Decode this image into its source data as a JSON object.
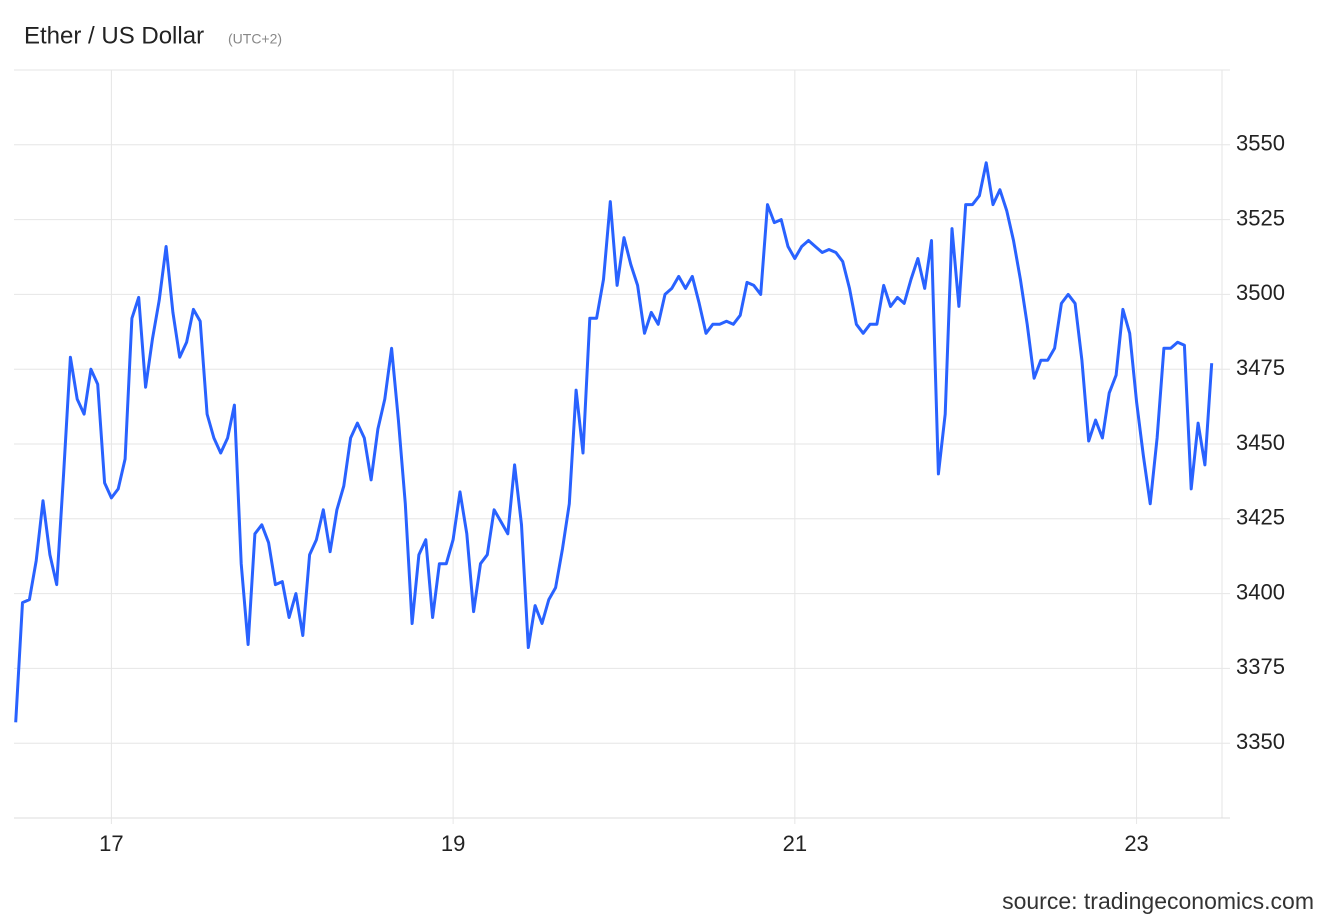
{
  "chart_data": {
    "type": "line",
    "title": "Ether / US Dollar",
    "subtitle": "(UTC+2)",
    "source": "source: tradingeconomics.com",
    "x": [
      16.44,
      16.48,
      16.52,
      16.56,
      16.6,
      16.64,
      16.68,
      16.72,
      16.76,
      16.8,
      16.84,
      16.88,
      16.92,
      16.96,
      17.0,
      17.04,
      17.08,
      17.12,
      17.16,
      17.2,
      17.24,
      17.28,
      17.32,
      17.36,
      17.4,
      17.44,
      17.48,
      17.52,
      17.56,
      17.6,
      17.64,
      17.68,
      17.72,
      17.76,
      17.8,
      17.84,
      17.88,
      17.92,
      17.96,
      18.0,
      18.04,
      18.08,
      18.12,
      18.16,
      18.2,
      18.24,
      18.28,
      18.32,
      18.36,
      18.4,
      18.44,
      18.48,
      18.52,
      18.56,
      18.6,
      18.64,
      18.68,
      18.72,
      18.76,
      18.8,
      18.84,
      18.88,
      18.92,
      18.96,
      19.0,
      19.04,
      19.08,
      19.12,
      19.16,
      19.2,
      19.24,
      19.28,
      19.32,
      19.36,
      19.4,
      19.44,
      19.48,
      19.52,
      19.56,
      19.6,
      19.64,
      19.68,
      19.72,
      19.76,
      19.8,
      19.84,
      19.88,
      19.92,
      19.96,
      20.0,
      20.04,
      20.08,
      20.12,
      20.16,
      20.2,
      20.24,
      20.28,
      20.32,
      20.36,
      20.4,
      20.44,
      20.48,
      20.52,
      20.56,
      20.6,
      20.64,
      20.68,
      20.72,
      20.76,
      20.8,
      20.84,
      20.88,
      20.92,
      20.96,
      21.0,
      21.04,
      21.08,
      21.12,
      21.16,
      21.2,
      21.24,
      21.28,
      21.32,
      21.36,
      21.4,
      21.44,
      21.48,
      21.52,
      21.56,
      21.6,
      21.64,
      21.68,
      21.72,
      21.76,
      21.8,
      21.84,
      21.88,
      21.92,
      21.96,
      22.0,
      22.04,
      22.08,
      22.12,
      22.16,
      22.2,
      22.24,
      22.28,
      22.32,
      22.36,
      22.4,
      22.44,
      22.48,
      22.52,
      22.56,
      22.6,
      22.64,
      22.68,
      22.72,
      22.76,
      22.8,
      22.84,
      22.88,
      22.92,
      22.96,
      23.0,
      23.04,
      23.08,
      23.12,
      23.16,
      23.2,
      23.24,
      23.28,
      23.32,
      23.36,
      23.4,
      23.44
    ],
    "series": [
      {
        "name": "Ether / US Dollar",
        "color": "#2962ff",
        "values": [
          3357,
          3397,
          3398,
          3411,
          3431,
          3413,
          3403,
          3440,
          3479,
          3465,
          3460,
          3475,
          3470,
          3437,
          3432,
          3435,
          3445,
          3492,
          3499,
          3469,
          3485,
          3498,
          3516,
          3494,
          3479,
          3484,
          3495,
          3491,
          3460,
          3452,
          3447,
          3452,
          3463,
          3410,
          3383,
          3420,
          3423,
          3417,
          3403,
          3404,
          3392,
          3400,
          3386,
          3413,
          3418,
          3428,
          3414,
          3428,
          3436,
          3452,
          3457,
          3452,
          3438,
          3455,
          3465,
          3482,
          3458,
          3430,
          3390,
          3413,
          3418,
          3392,
          3410,
          3410,
          3418,
          3434,
          3420,
          3394,
          3410,
          3413,
          3428,
          3424,
          3420,
          3443,
          3423,
          3382,
          3396,
          3390,
          3398,
          3402,
          3415,
          3430,
          3468,
          3447,
          3492,
          3492,
          3505,
          3531,
          3503,
          3519,
          3510,
          3503,
          3487,
          3494,
          3490,
          3500,
          3502,
          3506,
          3502,
          3506,
          3497,
          3487,
          3490,
          3490,
          3491,
          3490,
          3493,
          3504,
          3503,
          3500,
          3530,
          3524,
          3525,
          3516,
          3512,
          3516,
          3518,
          3516,
          3514,
          3515,
          3514,
          3511,
          3502,
          3490,
          3487,
          3490,
          3490,
          3503,
          3496,
          3499,
          3497,
          3505,
          3512,
          3502,
          3518,
          3440,
          3460,
          3522,
          3496,
          3530,
          3530,
          3533,
          3544,
          3530,
          3535,
          3528,
          3518,
          3505,
          3490,
          3472,
          3478,
          3478,
          3482,
          3497,
          3500,
          3497,
          3478,
          3451,
          3458,
          3452,
          3467,
          3473,
          3495,
          3487,
          3464,
          3446,
          3430,
          3452,
          3482,
          3482,
          3484,
          3483,
          3435,
          3457,
          3443,
          3477
        ]
      }
    ],
    "xlim": [
      16.43,
      23.5
    ],
    "xticks": [
      17,
      19,
      21,
      23
    ],
    "ylim": [
      3325,
      3575
    ],
    "yticks": [
      3350,
      3375,
      3400,
      3425,
      3450,
      3475,
      3500,
      3525,
      3550
    ],
    "grid": true
  }
}
